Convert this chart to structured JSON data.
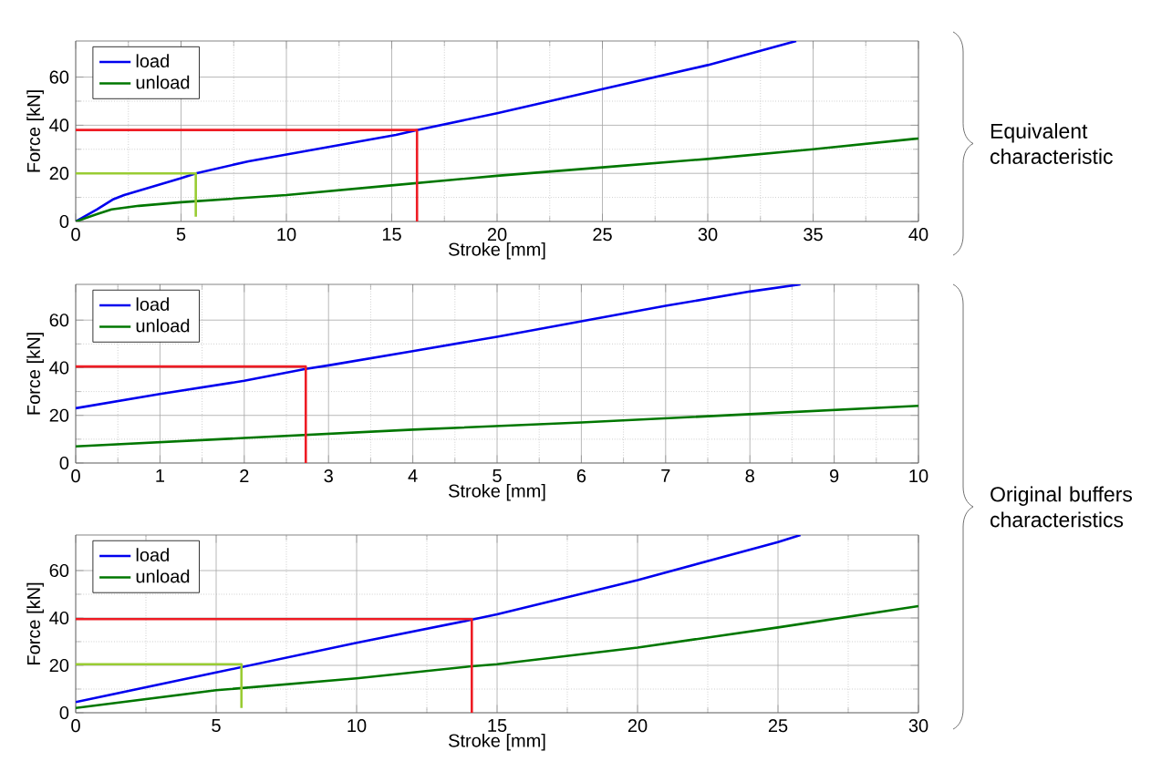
{
  "chart_data": [
    {
      "type": "line",
      "xlabel": "Stroke [mm]",
      "ylabel": "Force [kN]",
      "xlim": [
        0,
        40
      ],
      "ylim": [
        0,
        75
      ],
      "xticks": [
        0,
        5,
        10,
        15,
        20,
        25,
        30,
        35,
        40
      ],
      "yticks": [
        0,
        20,
        40,
        60
      ],
      "grid": true,
      "legend": "top left",
      "annotations": [
        "Equivalent characteristic"
      ],
      "series": [
        {
          "name": "load",
          "color": "#0000ee",
          "x": [
            0,
            1,
            1.8,
            2.3,
            5,
            5.7,
            8.2,
            15.2,
            16.2,
            20,
            25,
            30,
            34.2
          ],
          "values": [
            0,
            5,
            9.3,
            11,
            18,
            20,
            25,
            36,
            38,
            45,
            55,
            65,
            75
          ]
        },
        {
          "name": "unload",
          "color": "#007700",
          "x": [
            0,
            1,
            1.7,
            3,
            5,
            10,
            15,
            20,
            25,
            30,
            35,
            40
          ],
          "values": [
            0,
            3,
            5,
            6.5,
            8,
            11,
            15,
            19,
            22.5,
            26,
            30,
            34.5
          ]
        },
        {
          "color": "#ee1c24",
          "x": [
            0,
            16.2,
            16.2
          ],
          "values": [
            38,
            38,
            0
          ]
        },
        {
          "color": "#99cc33",
          "x": [
            0,
            5.7,
            5.7
          ],
          "values": [
            20,
            20,
            2
          ]
        }
      ]
    },
    {
      "type": "line",
      "xlabel": "Stroke [mm]",
      "ylabel": "Force [kN]",
      "xlim": [
        0,
        10
      ],
      "ylim": [
        0,
        75
      ],
      "xticks": [
        0,
        1,
        2,
        3,
        4,
        5,
        6,
        7,
        8,
        9,
        10
      ],
      "yticks": [
        0,
        20,
        40,
        60
      ],
      "grid": true,
      "legend": "top left",
      "annotations": [
        "Original buffers characteristics"
      ],
      "series": [
        {
          "name": "load",
          "color": "#0000ee",
          "x": [
            0,
            1,
            2,
            2.73,
            3,
            4,
            5,
            6,
            7,
            8,
            8.6
          ],
          "values": [
            23,
            29,
            34.5,
            39.5,
            41,
            47,
            53,
            59.5,
            66,
            72,
            75
          ]
        },
        {
          "name": "unload",
          "color": "#007700",
          "x": [
            0,
            2,
            4,
            6,
            8,
            10
          ],
          "values": [
            7,
            10.5,
            14,
            17,
            20.5,
            24
          ]
        },
        {
          "color": "#ee1c24",
          "x": [
            0,
            2.73,
            2.73
          ],
          "values": [
            40.5,
            40.5,
            0
          ]
        }
      ]
    },
    {
      "type": "line",
      "xlabel": "Stroke [mm]",
      "ylabel": "Force [kN]",
      "xlim": [
        0,
        30
      ],
      "ylim": [
        0,
        75
      ],
      "xticks": [
        0,
        5,
        10,
        15,
        20,
        25,
        30
      ],
      "yticks": [
        0,
        20,
        40,
        60
      ],
      "grid": true,
      "legend": "top left",
      "series": [
        {
          "name": "load",
          "color": "#0000ee",
          "x": [
            0,
            5,
            10,
            14,
            15,
            20,
            25,
            25.8
          ],
          "values": [
            4.5,
            17,
            29.5,
            39,
            41.5,
            56,
            72,
            75
          ]
        },
        {
          "name": "unload",
          "color": "#007700",
          "x": [
            0,
            5,
            10,
            14,
            15,
            20,
            25,
            30
          ],
          "values": [
            2,
            9.5,
            14.5,
            19.5,
            20.5,
            27.5,
            36,
            45
          ]
        },
        {
          "color": "#ee1c24",
          "x": [
            0,
            14.1,
            14.1
          ],
          "values": [
            39.5,
            39.5,
            0
          ]
        },
        {
          "color": "#99cc33",
          "x": [
            0,
            5.9,
            5.9
          ],
          "values": [
            20.5,
            20.5,
            2
          ]
        }
      ]
    }
  ]
}
